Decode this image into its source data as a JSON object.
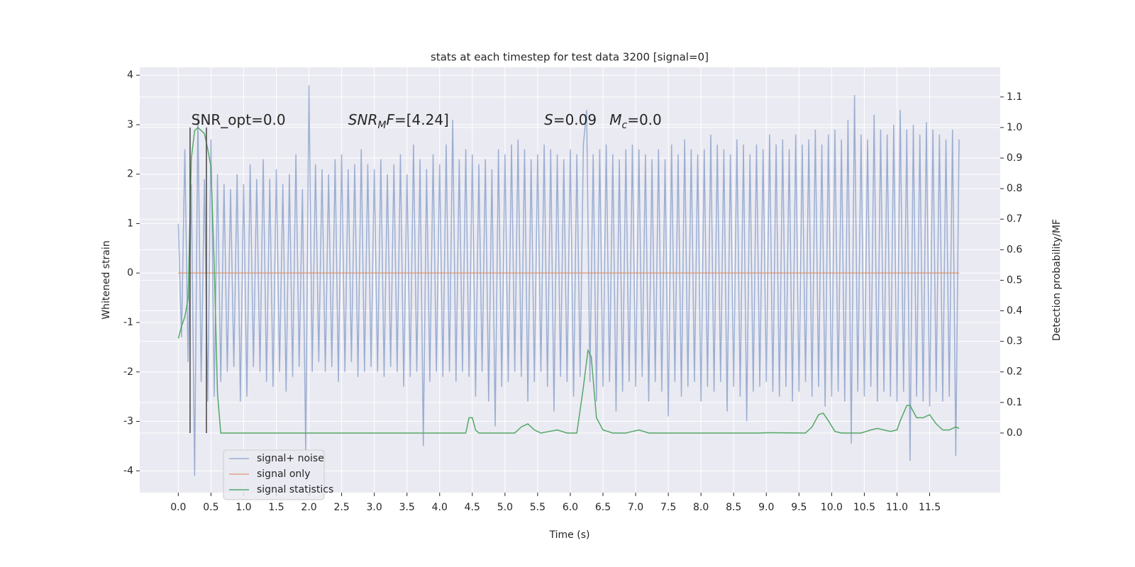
{
  "chart_data": {
    "type": "line",
    "title": "stats at each timestep for test data 3200 [signal=0]",
    "xlabel": "Time (s)",
    "ylabel": "Whitened strain",
    "y2label": "Detection probability/MF",
    "xlim": [
      -0.59,
      12.58
    ],
    "ylim": [
      -4.44,
      4.16
    ],
    "y2lim": [
      -0.195,
      1.197
    ],
    "xticks": [
      {
        "value": 0,
        "label": "0.0"
      },
      0.5,
      {
        "value": 1,
        "label": "1.0"
      },
      1.5,
      {
        "value": 2,
        "label": "2.0"
      },
      2.5,
      {
        "value": 3,
        "label": "3.0"
      },
      3.5,
      {
        "value": 4,
        "label": "4.0"
      },
      4.5,
      {
        "value": 5,
        "label": "5.0"
      },
      5.5,
      {
        "value": 6,
        "label": "6.0"
      },
      6.5,
      {
        "value": 7,
        "label": "7.0"
      },
      7.5,
      {
        "value": 8,
        "label": "8.0"
      },
      8.5,
      {
        "value": 9,
        "label": "9.0"
      },
      9.5,
      {
        "value": 10,
        "label": "10.0"
      },
      10.5,
      {
        "value": 11,
        "label": "11.0"
      },
      11.5
    ],
    "yticks": [
      -4,
      -3,
      -2,
      -1,
      0,
      1,
      2,
      3,
      4
    ],
    "y2ticks": [
      {
        "value": 0,
        "label": "0.0"
      },
      0.1,
      0.2,
      0.3,
      0.4,
      0.5,
      0.6,
      0.7,
      0.8,
      0.9,
      {
        "value": 1,
        "label": "1.0"
      },
      1.1
    ],
    "grid": true,
    "legend": "lower left",
    "series": [
      {
        "name": "signal+ noise",
        "color": "#4c72b0",
        "opacity": 0.5,
        "x": [
          0,
          0.05,
          0.1,
          0.15,
          0.2,
          0.25,
          0.3,
          0.35,
          0.4,
          0.45,
          0.5,
          0.55,
          0.6,
          0.65,
          0.7,
          0.75,
          0.8,
          0.85,
          0.9,
          0.95,
          1,
          1.05,
          1.1,
          1.15,
          1.2,
          1.25,
          1.3,
          1.35,
          1.4,
          1.45,
          1.5,
          1.55,
          1.6,
          1.65,
          1.7,
          1.75,
          1.8,
          1.85,
          1.9,
          1.95,
          2,
          2.05,
          2.1,
          2.15,
          2.2,
          2.25,
          2.3,
          2.35,
          2.4,
          2.45,
          2.5,
          2.55,
          2.6,
          2.65,
          2.7,
          2.75,
          2.8,
          2.85,
          2.9,
          2.95,
          3,
          3.05,
          3.1,
          3.15,
          3.2,
          3.25,
          3.3,
          3.35,
          3.4,
          3.45,
          3.5,
          3.55,
          3.6,
          3.65,
          3.7,
          3.75,
          3.8,
          3.85,
          3.9,
          3.95,
          4,
          4.05,
          4.1,
          4.15,
          4.2,
          4.25,
          4.3,
          4.35,
          4.4,
          4.45,
          4.5,
          4.55,
          4.6,
          4.65,
          4.7,
          4.75,
          4.8,
          4.85,
          4.9,
          4.95,
          5,
          5.05,
          5.1,
          5.15,
          5.2,
          5.25,
          5.3,
          5.35,
          5.4,
          5.45,
          5.5,
          5.55,
          5.6,
          5.65,
          5.7,
          5.75,
          5.8,
          5.85,
          5.9,
          5.95,
          6,
          6.05,
          6.1,
          6.15,
          6.2,
          6.25,
          6.3,
          6.35,
          6.4,
          6.45,
          6.5,
          6.55,
          6.6,
          6.65,
          6.7,
          6.75,
          6.8,
          6.85,
          6.9,
          6.95,
          7,
          7.05,
          7.1,
          7.15,
          7.2,
          7.25,
          7.3,
          7.35,
          7.4,
          7.45,
          7.5,
          7.55,
          7.6,
          7.65,
          7.7,
          7.75,
          7.8,
          7.85,
          7.9,
          7.95,
          8,
          8.05,
          8.1,
          8.15,
          8.2,
          8.25,
          8.3,
          8.35,
          8.4,
          8.45,
          8.5,
          8.55,
          8.6,
          8.65,
          8.7,
          8.75,
          8.8,
          8.85,
          8.9,
          8.95,
          9,
          9.05,
          9.1,
          9.15,
          9.2,
          9.25,
          9.3,
          9.35,
          9.4,
          9.45,
          9.5,
          9.55,
          9.6,
          9.65,
          9.7,
          9.75,
          9.8,
          9.85,
          9.9,
          9.95,
          10,
          10.05,
          10.1,
          10.15,
          10.2,
          10.25,
          10.3,
          10.35,
          10.4,
          10.45,
          10.5,
          10.55,
          10.6,
          10.65,
          10.7,
          10.75,
          10.8,
          10.85,
          10.9,
          10.95,
          11,
          11.05,
          11.1,
          11.15,
          11.2,
          11.25,
          11.3,
          11.35,
          11.4,
          11.45,
          11.5,
          11.55,
          11.6,
          11.65,
          11.7,
          11.75,
          11.8,
          11.85,
          11.9,
          11.95
        ],
        "values": [
          1.0,
          -1.3,
          2.5,
          -1.8,
          1.8,
          -4.1,
          3.2,
          -2.2,
          1.9,
          -2.6,
          2.7,
          -2.5,
          2.0,
          -2.2,
          1.8,
          -2.0,
          1.7,
          -1.9,
          2.0,
          -2.6,
          1.8,
          -2.5,
          2.2,
          -1.9,
          1.9,
          -2.0,
          2.3,
          -2.2,
          1.9,
          -2.3,
          2.1,
          -2.0,
          1.8,
          -2.4,
          2.0,
          -2.1,
          2.4,
          -1.9,
          1.7,
          -3.6,
          3.8,
          -2.0,
          2.2,
          -1.8,
          2.1,
          -2.0,
          2.0,
          -1.9,
          2.3,
          -2.2,
          2.4,
          -2.0,
          2.1,
          -1.8,
          2.2,
          -2.1,
          2.5,
          -2.0,
          2.2,
          -1.9,
          2.1,
          -2.0,
          2.3,
          -2.1,
          2.0,
          -1.9,
          2.2,
          -2.0,
          2.4,
          -2.3,
          2.0,
          -2.1,
          2.6,
          -2.0,
          2.3,
          -3.5,
          2.1,
          -2.2,
          2.4,
          -2.0,
          2.2,
          -2.1,
          2.6,
          -2.0,
          3.1,
          -2.2,
          2.3,
          -2.0,
          2.5,
          -2.1,
          2.4,
          -2.5,
          2.2,
          -2.0,
          2.3,
          -2.6,
          2.1,
          -3.1,
          2.5,
          -2.3,
          2.4,
          -2.2,
          2.6,
          -2.0,
          2.7,
          -2.1,
          2.5,
          -2.6,
          2.3,
          -2.2,
          2.4,
          -2.0,
          2.6,
          -2.3,
          2.5,
          -2.8,
          2.4,
          -2.1,
          2.3,
          -2.2,
          2.5,
          -2.5,
          2.4,
          -2.1,
          2.6,
          3.3,
          -2.2,
          2.4,
          -2.6,
          2.5,
          -2.3,
          2.6,
          -2.2,
          2.4,
          -2.8,
          2.3,
          -2.4,
          2.5,
          -2.2,
          2.6,
          -2.3,
          2.5,
          -2.1,
          2.4,
          -2.6,
          2.3,
          -2.2,
          2.5,
          -2.4,
          2.3,
          -2.9,
          2.6,
          -2.2,
          2.4,
          -2.5,
          2.7,
          -2.3,
          2.5,
          -2.2,
          2.4,
          -2.6,
          2.5,
          -2.3,
          2.8,
          -2.4,
          2.6,
          -2.2,
          2.5,
          -2.8,
          2.4,
          -2.3,
          2.7,
          -2.5,
          2.6,
          -3.0,
          2.4,
          -2.4,
          2.6,
          -2.3,
          2.5,
          -2.2,
          2.8,
          -2.4,
          2.6,
          -2.5,
          2.7,
          -2.3,
          2.5,
          -2.6,
          2.8,
          -2.4,
          2.6,
          -2.2,
          2.7,
          -2.5,
          2.9,
          -2.3,
          2.6,
          -2.7,
          2.8,
          -2.5,
          2.9,
          -2.4,
          2.7,
          -2.6,
          3.1,
          -3.45,
          3.6,
          -2.4,
          2.8,
          -2.5,
          2.7,
          -2.3,
          3.2,
          -2.6,
          2.9,
          -2.4,
          2.8,
          -2.5,
          3.0,
          -2.6,
          3.3,
          -2.4,
          2.9,
          -3.8,
          3.0,
          -2.5,
          2.8,
          -2.6,
          3.05,
          -2.7,
          2.9,
          -2.4,
          2.8,
          -2.6,
          2.7,
          -2.5,
          2.9,
          -3.7,
          2.7
        ]
      },
      {
        "name": "signal only",
        "color": "#dd8452",
        "opacity": 0.7,
        "x": [
          0,
          11.95
        ],
        "values": [
          0,
          0
        ]
      },
      {
        "name": "signal statistics",
        "color": "#55a868",
        "opacity": 1,
        "axis": "y2",
        "x": [
          0,
          0.05,
          0.1,
          0.15,
          0.2,
          0.25,
          0.3,
          0.35,
          0.4,
          0.45,
          0.5,
          0.55,
          0.6,
          0.65,
          0.7,
          4.4,
          4.45,
          4.5,
          4.55,
          4.6,
          5.15,
          5.25,
          5.35,
          5.45,
          5.55,
          5.8,
          5.95,
          6.1,
          6.2,
          6.27,
          6.32,
          6.4,
          6.5,
          6.65,
          6.85,
          7.05,
          7.2,
          7.5,
          8.9,
          9.0,
          9.6,
          9.7,
          9.8,
          9.87,
          9.95,
          10.05,
          10.15,
          10.45,
          10.6,
          10.7,
          10.8,
          10.9,
          11.0,
          11.05,
          11.15,
          11.2,
          11.3,
          11.4,
          11.5,
          11.6,
          11.7,
          11.8,
          11.9,
          11.95
        ],
        "values": [
          0.31,
          0.35,
          0.38,
          0.44,
          0.9,
          0.99,
          1.0,
          0.99,
          0.98,
          0.93,
          0.87,
          0.55,
          0.13,
          0.0,
          0.0,
          0.0,
          0.05,
          0.05,
          0.01,
          0.0,
          0.0,
          0.02,
          0.03,
          0.01,
          0.0,
          0.01,
          0.0,
          0.0,
          0.15,
          0.27,
          0.25,
          0.05,
          0.01,
          0.0,
          0.0,
          0.01,
          0.0,
          0.0,
          0.0,
          0.001,
          0.0,
          0.02,
          0.06,
          0.065,
          0.04,
          0.005,
          0.0,
          0.0,
          0.01,
          0.015,
          0.01,
          0.005,
          0.01,
          0.04,
          0.09,
          0.09,
          0.05,
          0.05,
          0.06,
          0.03,
          0.01,
          0.01,
          0.02,
          0.015
        ]
      }
    ],
    "vlines": [
      {
        "x": 0.18,
        "y2": [
          0,
          1
        ]
      },
      {
        "x": 0.43,
        "y2": [
          0,
          1
        ]
      }
    ],
    "annotations": [
      {
        "x": 0.2,
        "y": 3.0,
        "parts": [
          {
            "t": "SNR_opt=0.0"
          }
        ]
      },
      {
        "x": 2.6,
        "y": 3.0,
        "parts": [
          {
            "t": "SNR",
            "style": "italic"
          },
          {
            "t": "M",
            "style": "italic-sub"
          },
          {
            "t": "F",
            "style": "italic"
          },
          {
            "t": "=[4.24]"
          }
        ]
      },
      {
        "x": 5.6,
        "y": 3.0,
        "parts": [
          {
            "t": "S",
            "style": "italic"
          },
          {
            "t": "=0.09"
          }
        ]
      },
      {
        "x": 6.6,
        "y": 3.0,
        "parts": [
          {
            "t": "M",
            "style": "italic"
          },
          {
            "t": "c",
            "style": "italic-sub"
          },
          {
            "t": "=0.0"
          }
        ]
      }
    ]
  }
}
